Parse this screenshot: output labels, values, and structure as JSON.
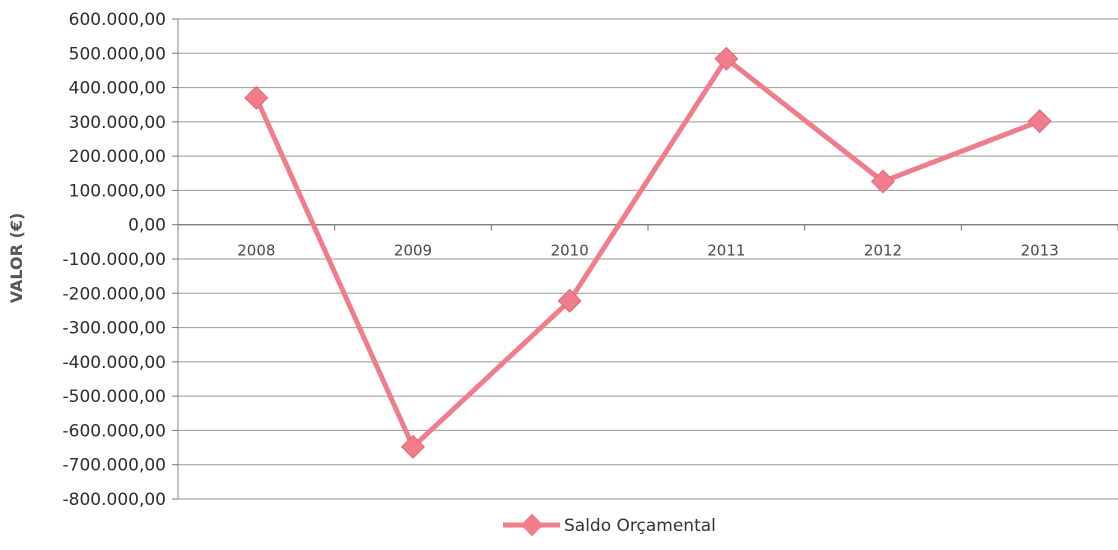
{
  "chart_data": {
    "type": "line",
    "title": "",
    "xlabel": "",
    "ylabel": "VALOR (€)",
    "categories": [
      "2008",
      "2009",
      "2010",
      "2011",
      "2012",
      "2013"
    ],
    "series": [
      {
        "name": "Saldo Orçamental",
        "values": [
          370000,
          -648000,
          -222000,
          484000,
          126000,
          302000
        ],
        "color": "#f07c8c",
        "marker": "diamond"
      }
    ],
    "ylim": [
      -800000,
      600000
    ],
    "ytick_step": 100000,
    "yticks": [
      "600.000,00",
      "500.000,00",
      "400.000,00",
      "300.000,00",
      "200.000,00",
      "100.000,00",
      "0,00",
      "-100.000,00",
      "-200.000,00",
      "-300.000,00",
      "-400.000,00",
      "-500.000,00",
      "-600.000,00",
      "-700.000,00",
      "-800.000,00"
    ],
    "grid": true,
    "gridline_color": "#999999",
    "legend_position": "bottom"
  }
}
